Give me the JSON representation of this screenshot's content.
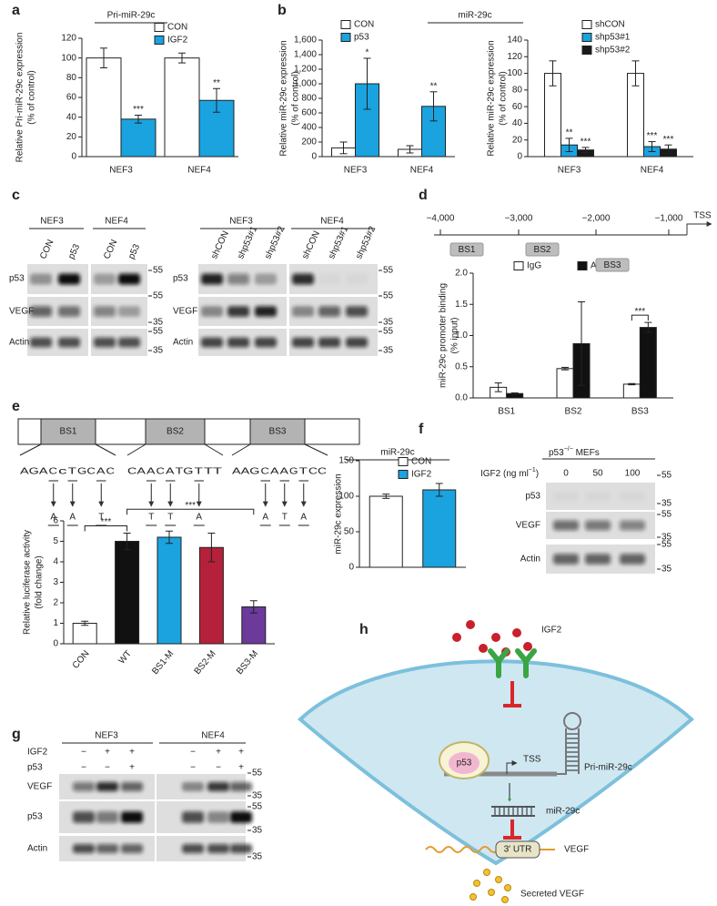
{
  "chart_data": [
    {
      "type": "bar",
      "title": "Pri-miR-29c",
      "ylabel": [
        "Relative Pri-miR-29c expression",
        "(% of control)"
      ],
      "categories": [
        "NEF3",
        "NEF4"
      ],
      "series": [
        {
          "name": "CON",
          "color": "#ffffff",
          "values": [
            100,
            100
          ],
          "errors": [
            10,
            5
          ]
        },
        {
          "name": "IGF2",
          "color": "#1aa3df",
          "values": [
            38,
            57
          ],
          "errors": [
            4,
            12
          ],
          "labels": [
            "***",
            "**"
          ]
        }
      ],
      "ylim": [
        0,
        120
      ],
      "yticks": [
        0,
        20,
        40,
        60,
        80,
        100,
        120
      ]
    },
    {
      "type": "bar",
      "ylabel": [
        "Relative miR-29c expression",
        "(% of control)"
      ],
      "categories": [
        "NEF3",
        "NEF4"
      ],
      "series": [
        {
          "name": "CON",
          "color": "#ffffff",
          "values": [
            120,
            100
          ],
          "errors": [
            80,
            50
          ]
        },
        {
          "name": "p53",
          "color": "#1aa3df",
          "values": [
            1000,
            690
          ],
          "errors": [
            350,
            200
          ],
          "labels": [
            "*",
            "**"
          ]
        }
      ],
      "ylim": [
        0,
        1600
      ],
      "yticks": [
        0,
        200,
        400,
        600,
        800,
        {
          "value": 1000,
          "label": "1,000"
        },
        {
          "value": 1200,
          "label": "1,200"
        },
        {
          "value": 1400,
          "label": "1,400"
        },
        {
          "value": 1600,
          "label": "1,600"
        }
      ]
    },
    {
      "type": "bar",
      "title": "miR-29c",
      "ylabel": [
        "Relative miR-29c expression",
        "(% of control)"
      ],
      "categories": [
        "NEF3",
        "NEF4"
      ],
      "series": [
        {
          "name": "shCON",
          "color": "#ffffff",
          "values": [
            100,
            100
          ],
          "errors": [
            15,
            15
          ]
        },
        {
          "name": "shp53#1",
          "color": "#1aa3df",
          "values": [
            14,
            12
          ],
          "errors": [
            8,
            6
          ],
          "labels": [
            "**",
            "***"
          ]
        },
        {
          "name": "shp53#2",
          "color": "#1a1a1a",
          "values": [
            8,
            9
          ],
          "errors": [
            3,
            5
          ],
          "labels": [
            "***",
            "***"
          ]
        }
      ],
      "ylim": [
        0,
        140
      ],
      "yticks": [
        0,
        20,
        40,
        60,
        80,
        100,
        120,
        140
      ]
    },
    {
      "type": "bar",
      "ylabel": [
        "miR-29c promoter binding",
        "(% input)"
      ],
      "categories": [
        "BS1",
        "BS2",
        "BS3"
      ],
      "series": [
        {
          "name": "IgG",
          "color": "#ffffff",
          "values": [
            0.17,
            0.47,
            0.22
          ],
          "errors": [
            0.07,
            0.02,
            0.01
          ]
        },
        {
          "name": "Anti-p53",
          "color": "#111111",
          "values": [
            0.07,
            0.87,
            1.13
          ],
          "errors": [
            0.01,
            0.67,
            0.08
          ]
        }
      ],
      "brackets": [
        {
          "category": 2,
          "text": "***"
        }
      ],
      "ylim": [
        0,
        2
      ],
      "yticks": [
        {
          "value": 0,
          "label": "0.0"
        },
        0.5,
        {
          "value": 1,
          "label": "1.0"
        },
        1.5,
        {
          "value": 2,
          "label": "2.0"
        }
      ]
    },
    {
      "type": "bar",
      "ylabel": [
        "Relative luciferase activity",
        "(fold change)"
      ],
      "categories": [
        "CON",
        "WT",
        "BS1-M",
        "BS2-M",
        "BS3-M"
      ],
      "values": [
        1,
        5,
        5.2,
        4.7,
        1.8
      ],
      "errors": [
        0.1,
        0.4,
        0.3,
        0.7,
        0.3
      ],
      "colors": [
        "#ffffff",
        "#111111",
        "#1aa3df",
        "#b5213a",
        "#6b3a9b"
      ],
      "brackets": [
        {
          "from": 0,
          "to": 1,
          "text": "***"
        },
        {
          "from": 1,
          "to": 4,
          "text": "***"
        }
      ],
      "ylim": [
        0,
        6
      ],
      "yticks": [
        0,
        1,
        2,
        3,
        4,
        5,
        6
      ]
    },
    {
      "type": "bar",
      "title": "miR-29c",
      "ylabel": [
        "miR-29c expression"
      ],
      "series": [
        {
          "name": "CON",
          "color": "#ffffff",
          "values": [
            100
          ],
          "errors": [
            3
          ]
        },
        {
          "name": "IGF2",
          "color": "#1aa3df",
          "values": [
            109
          ],
          "errors": [
            9
          ]
        }
      ],
      "ylim": [
        0,
        150
      ],
      "yticks": [
        0,
        50,
        100,
        150
      ]
    }
  ],
  "figure": {
    "letters": [
      "a",
      "b",
      "c",
      "d",
      "e",
      "f",
      "g",
      "h"
    ],
    "c": {
      "left": {
        "groups": [
          "NEF3",
          "NEF4"
        ],
        "lanes": [
          "CON",
          "p53",
          "CON",
          "p53"
        ],
        "rows": [
          "p53",
          "VEGF",
          "Actin"
        ],
        "mw": [
          "55",
          "55",
          "35",
          "55",
          "35"
        ]
      },
      "right": {
        "groups": [
          "NEF3",
          "NEF4"
        ],
        "lanes": [
          "shCON",
          "shp53#1",
          "shp53#2",
          "shCON",
          "shp53#1",
          "shp53#2"
        ],
        "rows": [
          "p53",
          "VEGF",
          "Actin"
        ],
        "mw": [
          "55",
          "55",
          "35",
          "55",
          "35"
        ]
      }
    },
    "d": {
      "scale": [
        "−4,000",
        "−3,000",
        "−2,000",
        "−1,000"
      ],
      "tss": "TSS",
      "sites": [
        "BS1",
        "BS2",
        "BS3"
      ]
    },
    "e": {
      "boxes": [
        "BS1",
        "BS2",
        "BS3"
      ],
      "sequences": [
        [
          {
            "text": "AGA"
          },
          {
            "text": "C",
            "color": "#d62728"
          },
          {
            "text": "c"
          },
          {
            "text": "T",
            "color": "#d62728"
          },
          {
            "text": "GC"
          },
          {
            "text": "A",
            "color": "#d62728"
          },
          {
            "text": "C"
          }
        ],
        [
          {
            "text": "CA"
          },
          {
            "text": "A",
            "color": "#d62728"
          },
          {
            "text": "C"
          },
          {
            "text": "A",
            "color": "#d62728"
          },
          {
            "text": "TG"
          },
          {
            "text": "T",
            "color": "#d62728"
          },
          {
            "text": "TT"
          }
        ],
        [
          {
            "text": "AAG"
          },
          {
            "text": "C",
            "color": "#d62728"
          },
          {
            "text": "A"
          },
          {
            "text": "A",
            "color": "#d62728"
          },
          {
            "text": "G"
          },
          {
            "text": "T",
            "color": "#d62728"
          },
          {
            "text": "CC"
          }
        ]
      ],
      "mutations": [
        [
          "A",
          "A",
          "T"
        ],
        [
          "T",
          "T",
          "A"
        ],
        [
          "A",
          "T",
          "A"
        ]
      ],
      "mutation_color": "#3a6db5"
    },
    "f": {
      "blot_title": [
        "p53",
        "−/−",
        " MEFs"
      ],
      "dose_label": [
        "IGF2 (ng ml",
        "−1",
        ")"
      ],
      "doses": [
        "0",
        "50",
        "100"
      ],
      "rows": [
        "p53",
        "VEGF",
        "Actin"
      ],
      "mw": [
        "55",
        "35",
        "55",
        "35",
        "55",
        "35"
      ]
    },
    "g": {
      "groups": [
        "NEF3",
        "NEF4"
      ],
      "conditions": [
        {
          "name": "IGF2",
          "marks": [
            "−",
            "+",
            "+",
            "−",
            "+",
            "+"
          ]
        },
        {
          "name": "p53",
          "marks": [
            "−",
            "−",
            "+",
            "−",
            "−",
            "+"
          ]
        }
      ],
      "rows": [
        "VEGF",
        "p53",
        "Actin"
      ],
      "mw": [
        "55",
        "35",
        "55",
        "35",
        "35"
      ]
    },
    "h": {
      "igf2": "IGF2",
      "p53": "p53",
      "tss": "TSS",
      "pri": "Pri-miR-29c",
      "mir": "miR-29c",
      "utr": "3′ UTR",
      "vegf": "VEGF",
      "secreted": "Secreted VEGF"
    }
  }
}
